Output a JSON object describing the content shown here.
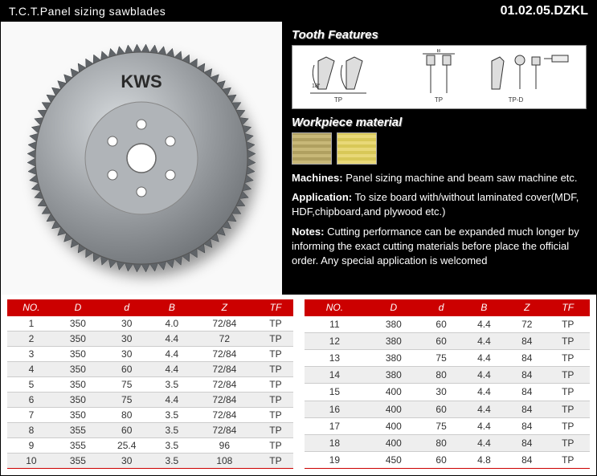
{
  "header": {
    "title": "T.C.T.Panel sizing sawblades",
    "code": "01.02.05.DZKL"
  },
  "sections": {
    "tooth": "Tooth Features",
    "workpiece": "Workpiece material"
  },
  "blade": {
    "label": "KWS",
    "outer_color": "#8f9498",
    "inner_color": "#a0a4a8",
    "hub_color": "#b8bcc0",
    "label_color": "#2a2a2a"
  },
  "swatches": [
    {
      "c1": "#c8b878",
      "c2": "#b0a060",
      "name": "particleboard"
    },
    {
      "c1": "#e8d878",
      "c2": "#d8c858",
      "name": "plywood"
    }
  ],
  "info": {
    "machines_label": "Machines:",
    "machines_text": "Panel sizing machine and beam saw machine etc.",
    "application_label": "Application:",
    "application_text": "To size board with/without laminated cover(MDF, HDF,chipboard,and plywood etc.)",
    "notes_label": "Notes:",
    "notes_text": "Cutting performance can be expanded much longer by informing the exact cutting materials before place the official order. Any special application is welcomed"
  },
  "table": {
    "columns": [
      "NO.",
      "D",
      "d",
      "B",
      "Z",
      "TF"
    ],
    "header_bg": "#c00000",
    "header_fg": "#ffffff",
    "row_even_bg": "#eeeeee",
    "row_odd_bg": "#ffffff",
    "left": [
      [
        "1",
        "350",
        "30",
        "4.0",
        "72/84",
        "TP"
      ],
      [
        "2",
        "350",
        "30",
        "4.4",
        "72",
        "TP"
      ],
      [
        "3",
        "350",
        "30",
        "4.4",
        "72/84",
        "TP"
      ],
      [
        "4",
        "350",
        "60",
        "4.4",
        "72/84",
        "TP"
      ],
      [
        "5",
        "350",
        "75",
        "3.5",
        "72/84",
        "TP"
      ],
      [
        "6",
        "350",
        "75",
        "4.4",
        "72/84",
        "TP"
      ],
      [
        "7",
        "350",
        "80",
        "3.5",
        "72/84",
        "TP"
      ],
      [
        "8",
        "355",
        "60",
        "3.5",
        "72/84",
        "TP"
      ],
      [
        "9",
        "355",
        "25.4",
        "3.5",
        "96",
        "TP"
      ],
      [
        "10",
        "355",
        "30",
        "3.5",
        "108",
        "TP"
      ]
    ],
    "right": [
      [
        "11",
        "380",
        "60",
        "4.4",
        "72",
        "TP"
      ],
      [
        "12",
        "380",
        "60",
        "4.4",
        "84",
        "TP"
      ],
      [
        "13",
        "380",
        "75",
        "4.4",
        "84",
        "TP"
      ],
      [
        "14",
        "380",
        "80",
        "4.4",
        "84",
        "TP"
      ],
      [
        "15",
        "400",
        "30",
        "4.4",
        "84",
        "TP"
      ],
      [
        "16",
        "400",
        "60",
        "4.4",
        "84",
        "TP"
      ],
      [
        "17",
        "400",
        "75",
        "4.4",
        "84",
        "TP"
      ],
      [
        "18",
        "400",
        "80",
        "4.4",
        "84",
        "TP"
      ],
      [
        "19",
        "450",
        "60",
        "4.8",
        "84",
        "TP"
      ]
    ]
  },
  "tooth_diagram": {
    "tp_label": "TP",
    "tpd_label": "TP-D",
    "b_label": "B",
    "angle_label": "18°",
    "stroke": "#333333",
    "fill": "#ffffff"
  }
}
